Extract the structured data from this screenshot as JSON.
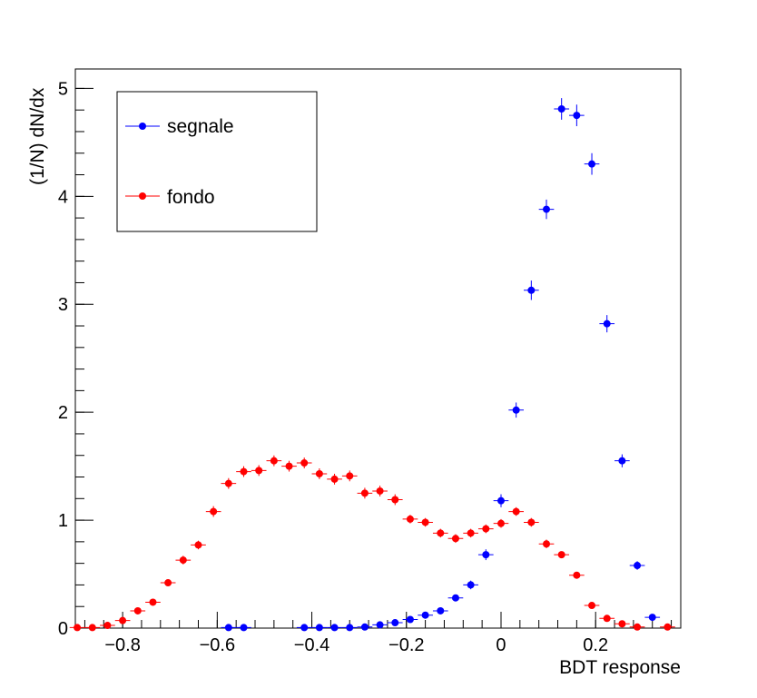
{
  "chart_data": {
    "type": "scatter",
    "title": "",
    "xlabel": "BDT response",
    "ylabel": "(1/N) dN/dx",
    "xlim": [
      -0.9,
      0.38
    ],
    "ylim": [
      0,
      5.18
    ],
    "grid": false,
    "legend_position": "top-left",
    "x_ticks": [
      {
        "value": -0.8,
        "label": "−0.8"
      },
      {
        "value": -0.6,
        "label": "−0.6"
      },
      {
        "value": -0.4,
        "label": "−0.4"
      },
      {
        "value": -0.2,
        "label": "−0.2"
      },
      {
        "value": 0,
        "label": "0"
      },
      {
        "value": 0.2,
        "label": "0.2"
      }
    ],
    "y_ticks": [
      {
        "value": 0,
        "label": "0"
      },
      {
        "value": 1,
        "label": "1"
      },
      {
        "value": 2,
        "label": "2"
      },
      {
        "value": 3,
        "label": "3"
      },
      {
        "value": 4,
        "label": "4"
      },
      {
        "value": 5,
        "label": "5"
      }
    ],
    "series": [
      {
        "name": "segnale",
        "color": "#0000ff",
        "points": [
          {
            "x": -0.576,
            "y": 0.005,
            "err": 0.01
          },
          {
            "x": -0.544,
            "y": 0.005,
            "err": 0.01
          },
          {
            "x": -0.416,
            "y": 0.005,
            "err": 0.01
          },
          {
            "x": -0.384,
            "y": 0.005,
            "err": 0.01
          },
          {
            "x": -0.352,
            "y": 0.005,
            "err": 0.01
          },
          {
            "x": -0.32,
            "y": 0.005,
            "err": 0.01
          },
          {
            "x": -0.288,
            "y": 0.01,
            "err": 0.01
          },
          {
            "x": -0.256,
            "y": 0.03,
            "err": 0.015
          },
          {
            "x": -0.224,
            "y": 0.05,
            "err": 0.015
          },
          {
            "x": -0.192,
            "y": 0.08,
            "err": 0.02
          },
          {
            "x": -0.16,
            "y": 0.12,
            "err": 0.02
          },
          {
            "x": -0.128,
            "y": 0.16,
            "err": 0.03
          },
          {
            "x": -0.096,
            "y": 0.28,
            "err": 0.03
          },
          {
            "x": -0.064,
            "y": 0.4,
            "err": 0.04
          },
          {
            "x": -0.032,
            "y": 0.68,
            "err": 0.05
          },
          {
            "x": 0.0,
            "y": 1.18,
            "err": 0.06
          },
          {
            "x": 0.032,
            "y": 2.02,
            "err": 0.07
          },
          {
            "x": 0.064,
            "y": 3.13,
            "err": 0.09
          },
          {
            "x": 0.096,
            "y": 3.88,
            "err": 0.09
          },
          {
            "x": 0.128,
            "y": 4.81,
            "err": 0.1
          },
          {
            "x": 0.16,
            "y": 4.75,
            "err": 0.1
          },
          {
            "x": 0.192,
            "y": 4.3,
            "err": 0.1
          },
          {
            "x": 0.224,
            "y": 2.82,
            "err": 0.08
          },
          {
            "x": 0.256,
            "y": 1.55,
            "err": 0.06
          },
          {
            "x": 0.288,
            "y": 0.58,
            "err": 0.04
          },
          {
            "x": 0.32,
            "y": 0.1,
            "err": 0.02
          }
        ]
      },
      {
        "name": "fondo",
        "color": "#ff0000",
        "points": [
          {
            "x": -0.896,
            "y": 0.005,
            "err": 0.01
          },
          {
            "x": -0.864,
            "y": 0.005,
            "err": 0.01
          },
          {
            "x": -0.832,
            "y": 0.025,
            "err": 0.01
          },
          {
            "x": -0.8,
            "y": 0.07,
            "err": 0.015
          },
          {
            "x": -0.768,
            "y": 0.16,
            "err": 0.02
          },
          {
            "x": -0.736,
            "y": 0.24,
            "err": 0.03
          },
          {
            "x": -0.704,
            "y": 0.42,
            "err": 0.03
          },
          {
            "x": -0.672,
            "y": 0.63,
            "err": 0.04
          },
          {
            "x": -0.64,
            "y": 0.77,
            "err": 0.04
          },
          {
            "x": -0.608,
            "y": 1.08,
            "err": 0.05
          },
          {
            "x": -0.576,
            "y": 1.34,
            "err": 0.05
          },
          {
            "x": -0.544,
            "y": 1.45,
            "err": 0.05
          },
          {
            "x": -0.512,
            "y": 1.46,
            "err": 0.05
          },
          {
            "x": -0.48,
            "y": 1.55,
            "err": 0.05
          },
          {
            "x": -0.448,
            "y": 1.5,
            "err": 0.05
          },
          {
            "x": -0.416,
            "y": 1.53,
            "err": 0.05
          },
          {
            "x": -0.384,
            "y": 1.43,
            "err": 0.05
          },
          {
            "x": -0.352,
            "y": 1.38,
            "err": 0.05
          },
          {
            "x": -0.32,
            "y": 1.41,
            "err": 0.05
          },
          {
            "x": -0.288,
            "y": 1.25,
            "err": 0.05
          },
          {
            "x": -0.256,
            "y": 1.27,
            "err": 0.05
          },
          {
            "x": -0.224,
            "y": 1.19,
            "err": 0.05
          },
          {
            "x": -0.192,
            "y": 1.01,
            "err": 0.04
          },
          {
            "x": -0.16,
            "y": 0.98,
            "err": 0.04
          },
          {
            "x": -0.128,
            "y": 0.88,
            "err": 0.04
          },
          {
            "x": -0.096,
            "y": 0.83,
            "err": 0.04
          },
          {
            "x": -0.064,
            "y": 0.88,
            "err": 0.04
          },
          {
            "x": -0.032,
            "y": 0.92,
            "err": 0.04
          },
          {
            "x": 0.0,
            "y": 0.97,
            "err": 0.04
          },
          {
            "x": 0.032,
            "y": 1.08,
            "err": 0.04
          },
          {
            "x": 0.064,
            "y": 0.98,
            "err": 0.04
          },
          {
            "x": 0.096,
            "y": 0.78,
            "err": 0.04
          },
          {
            "x": 0.128,
            "y": 0.68,
            "err": 0.03
          },
          {
            "x": 0.16,
            "y": 0.49,
            "err": 0.03
          },
          {
            "x": 0.192,
            "y": 0.21,
            "err": 0.02
          },
          {
            "x": 0.224,
            "y": 0.09,
            "err": 0.02
          },
          {
            "x": 0.256,
            "y": 0.04,
            "err": 0.01
          },
          {
            "x": 0.288,
            "y": 0.01,
            "err": 0.01
          },
          {
            "x": 0.352,
            "y": 0.01,
            "err": 0.01
          }
        ]
      }
    ]
  }
}
